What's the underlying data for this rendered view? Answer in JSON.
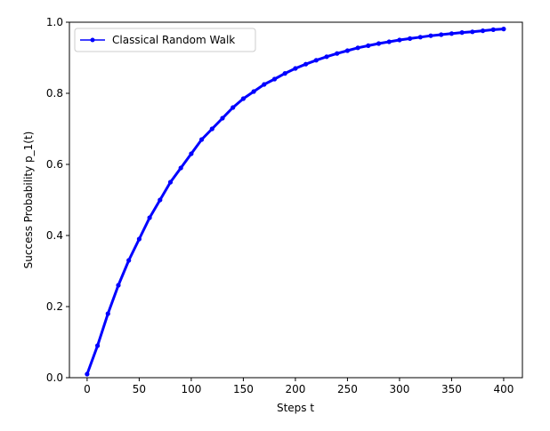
{
  "chart_data": {
    "type": "line",
    "title": "",
    "xlabel": "Steps t",
    "ylabel": "Success Probability p_1(t)",
    "xlim": [
      -17,
      418
    ],
    "ylim": [
      0.0,
      1.0
    ],
    "xticks": [
      0,
      50,
      100,
      150,
      200,
      250,
      300,
      350,
      400
    ],
    "yticks": [
      0.0,
      0.2,
      0.4,
      0.6,
      0.8,
      1.0
    ],
    "xtick_labels": [
      "0",
      "50",
      "100",
      "150",
      "200",
      "250",
      "300",
      "350",
      "400"
    ],
    "ytick_labels": [
      "0.0",
      "0.2",
      "0.4",
      "0.6",
      "0.8",
      "1.0"
    ],
    "grid": false,
    "legend_position": "top-left",
    "series": [
      {
        "name": "Classical Random Walk",
        "color": "#0000ff",
        "marker": "dot",
        "x": [
          0,
          10,
          20,
          30,
          40,
          50,
          60,
          70,
          80,
          90,
          100,
          110,
          120,
          130,
          140,
          150,
          160,
          170,
          180,
          190,
          200,
          210,
          220,
          230,
          240,
          250,
          260,
          270,
          280,
          290,
          300,
          310,
          320,
          330,
          340,
          350,
          360,
          370,
          380,
          390,
          400
        ],
        "y": [
          0.01,
          0.09,
          0.18,
          0.26,
          0.33,
          0.39,
          0.45,
          0.5,
          0.55,
          0.59,
          0.63,
          0.67,
          0.7,
          0.73,
          0.76,
          0.785,
          0.805,
          0.825,
          0.84,
          0.856,
          0.87,
          0.882,
          0.893,
          0.903,
          0.912,
          0.92,
          0.928,
          0.934,
          0.94,
          0.945,
          0.95,
          0.954,
          0.958,
          0.962,
          0.965,
          0.968,
          0.971,
          0.973,
          0.976,
          0.979,
          0.981
        ]
      }
    ]
  }
}
